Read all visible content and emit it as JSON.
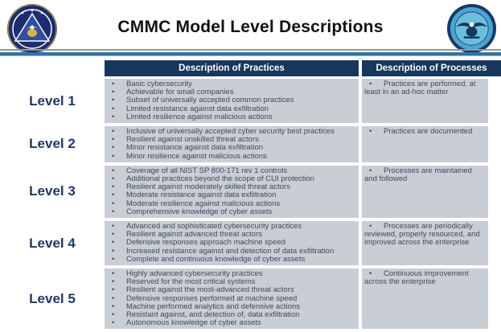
{
  "page": {
    "title": "CMMC Model Level Descriptions"
  },
  "logos": {
    "left_seal_name": "office-of-under-secretary-of-defense-acquisition-sustainment-seal",
    "right_seal_name": "department-of-defense-seal"
  },
  "table": {
    "headers": {
      "practices": "Description of Practices",
      "processes": "Description of Processes"
    },
    "rows": [
      {
        "level": "Level 1",
        "practices": [
          "Basic cybersecurity",
          "Achievable for small companies",
          "Subset of universally accepted common practices",
          "Limited resistance against data exfiltration",
          "Limited resilience against malicious actions"
        ],
        "processes": [
          "Practices are performed, at least in an ad-hoc matter"
        ]
      },
      {
        "level": "Level 2",
        "practices": [
          "Inclusive of universally accepted cyber security best practices",
          "Resilient against unskilled threat actors",
          "Minor resistance against data exfiltration",
          "Minor resilience against malicious actions"
        ],
        "processes": [
          "Practices are documented"
        ]
      },
      {
        "level": "Level 3",
        "practices": [
          "Coverage of all NIST SP 800-171 rev 1 controls",
          "Additional practices beyond the scope of CUI protection",
          "Resilient against moderately skilled threat actors",
          "Moderate resistance against data exfiltration",
          "Moderate resilience against malicious actions",
          "Comprehensive knowledge of cyber assets"
        ],
        "processes": [
          "Processes are maintained and followed"
        ]
      },
      {
        "level": "Level 4",
        "practices": [
          "Advanced and sophisticated cybersecurity practices",
          "Resilient against advanced threat actors",
          "Defensive responses approach machine speed",
          "Increased resistance against and detection of data exfiltration",
          "Complete and continuous knowledge of cyber assets"
        ],
        "processes": [
          "Processes are periodically reviewed, properly resourced, and improved across the enterprise"
        ]
      },
      {
        "level": "Level 5",
        "practices": [
          "Highly advanced cybersecurity practices",
          "Reserved for the most critical systems",
          "Resilient against the most-advanced threat actors",
          "Defensive responses performed at machine speed",
          "Machine performed analytics and defensive actions",
          "Resistant against, and detection of, data exfiltration",
          "Autonomous knowledge of cyber assets"
        ],
        "processes": [
          "Continuous improvement across the enterprise"
        ]
      }
    ]
  },
  "colors": {
    "header_bg": "#17375e",
    "header_text": "#ffffff",
    "row_bg": "#c9cdd4",
    "cell_text": "#3d4a5c",
    "level_text": "#203864",
    "divider_blue": "#2e74a4",
    "divider_gray": "#8f9698"
  }
}
